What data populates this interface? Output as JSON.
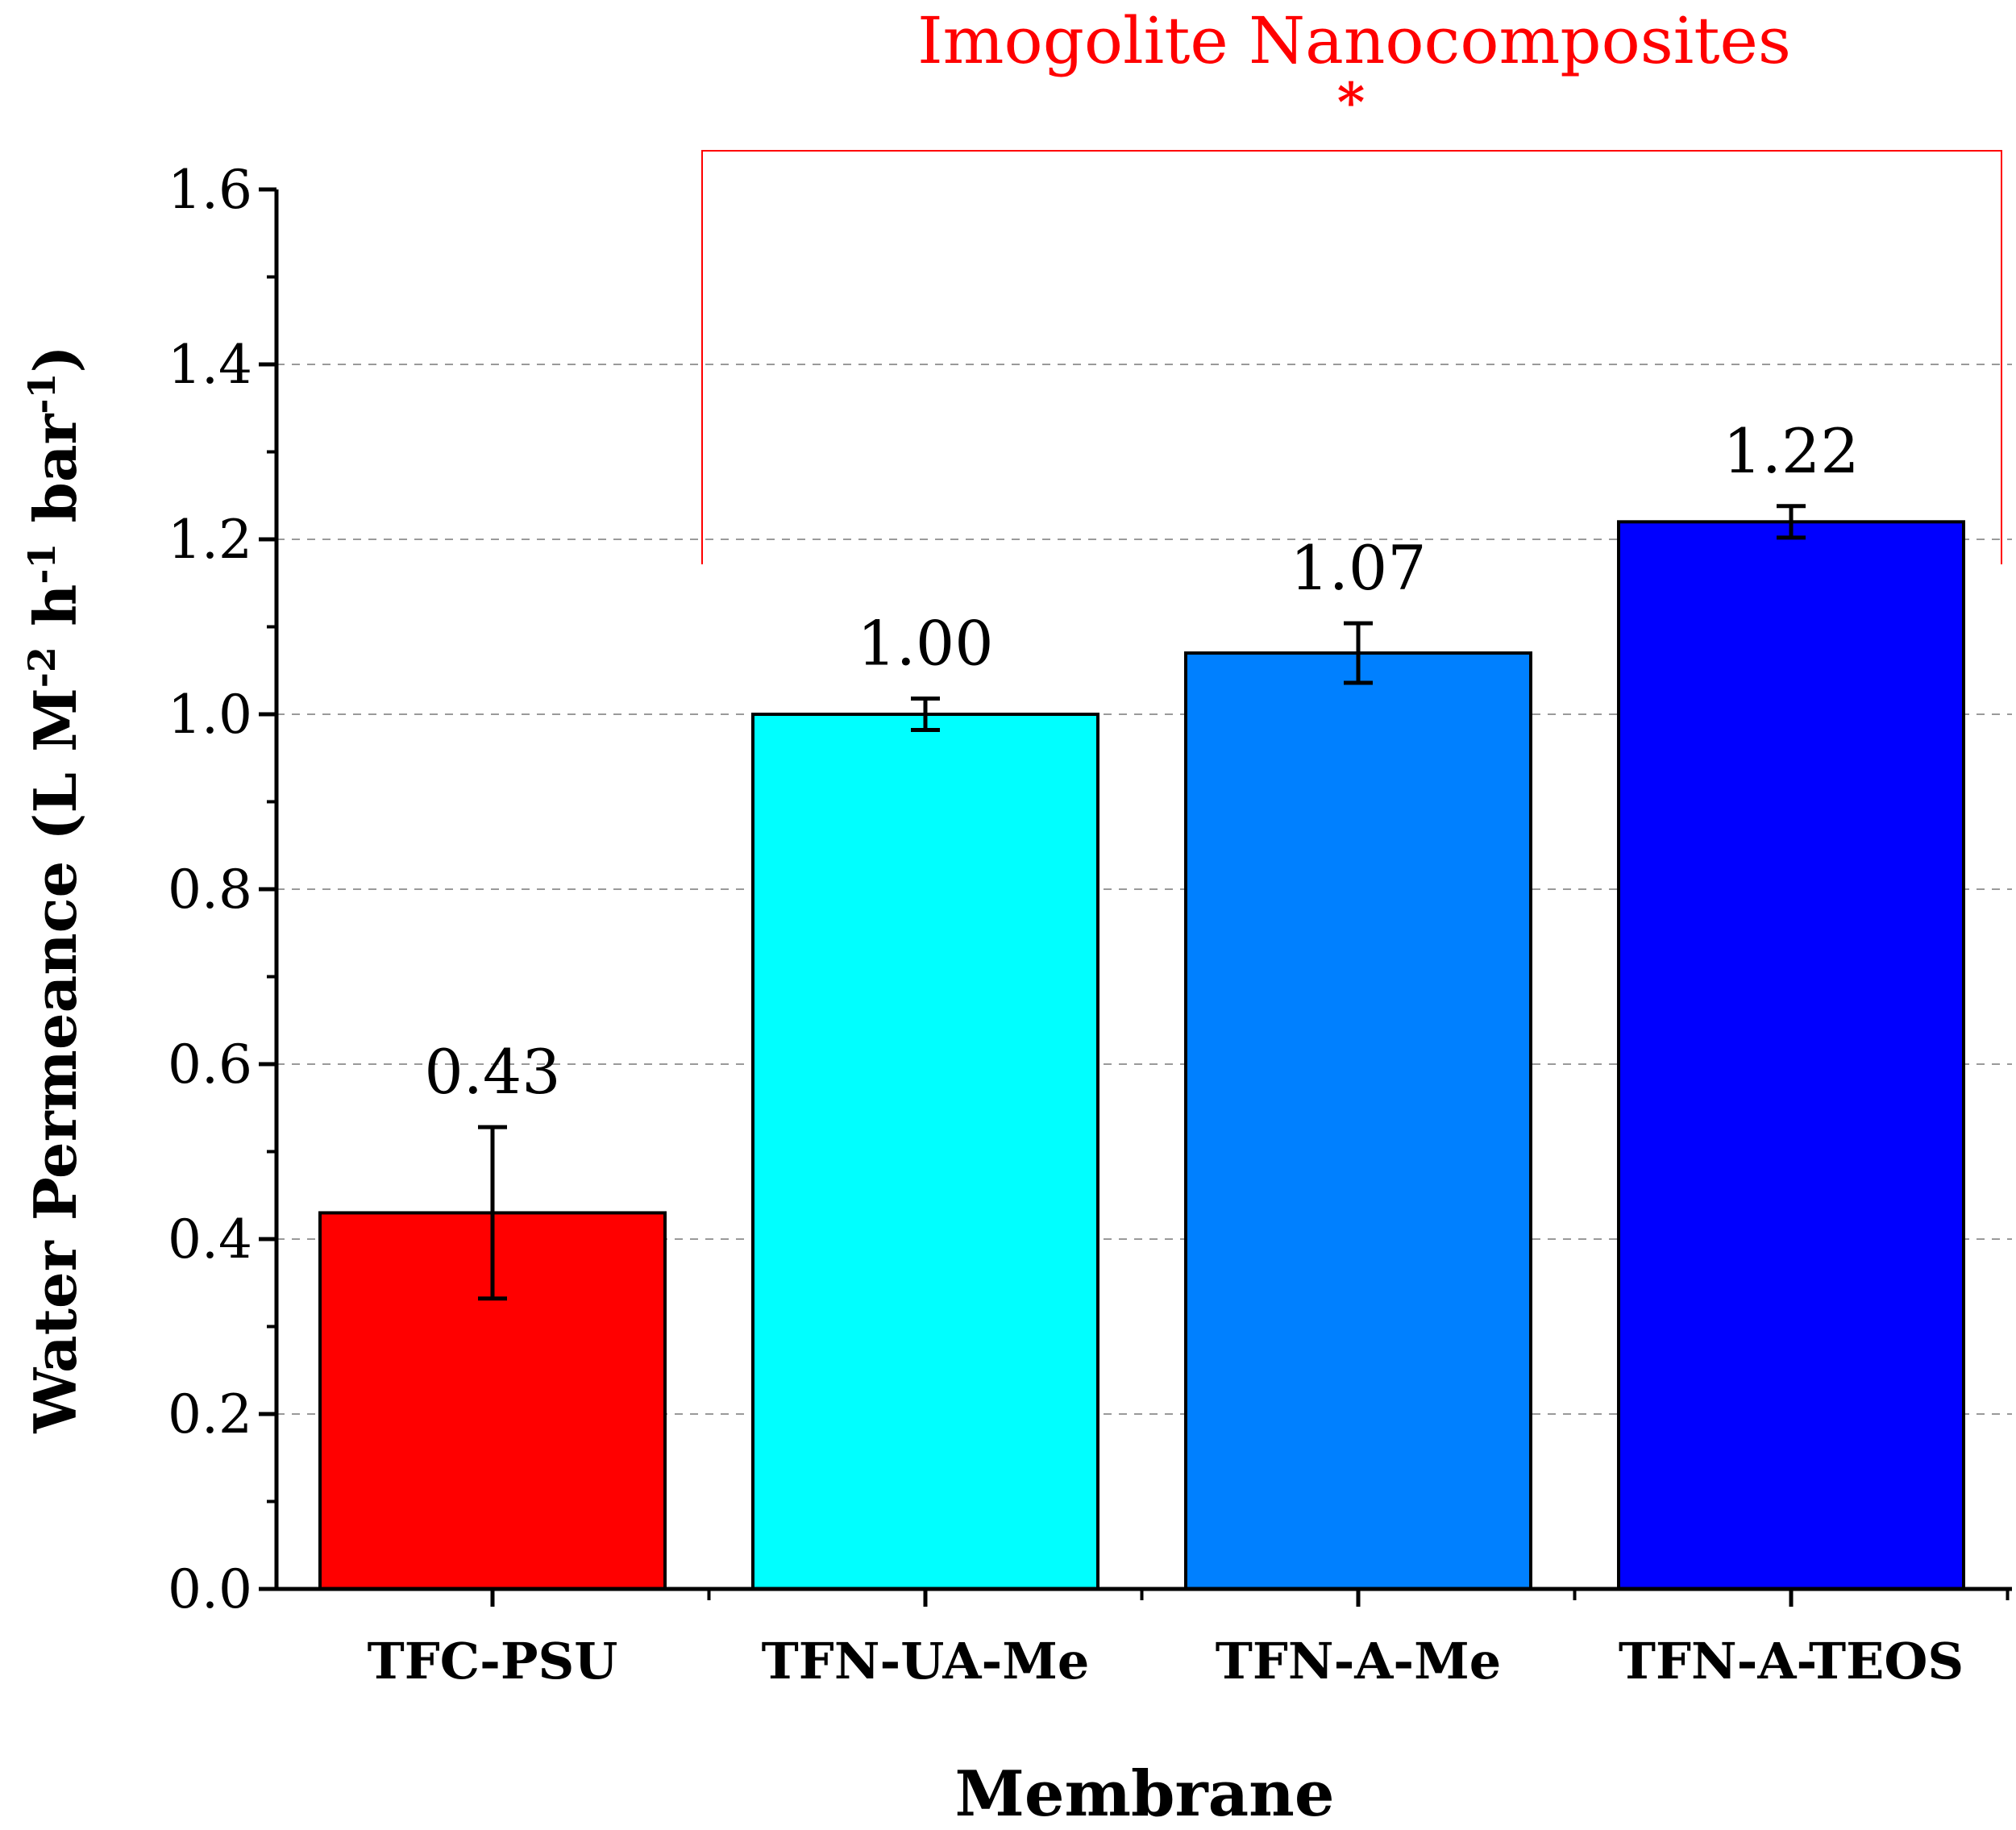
{
  "chart_data": {
    "type": "bar",
    "categories": [
      "TFC-PSU",
      "TFN-UA-Me",
      "TFN-A-Me",
      "TFN-A-TEOS"
    ],
    "values": [
      0.43,
      1.0,
      1.07,
      1.22
    ],
    "value_labels": [
      "0.43",
      "1.00",
      "1.07",
      "1.22"
    ],
    "errors": [
      0.098,
      0.018,
      0.034,
      0.018
    ],
    "bar_colors": [
      "#ff0000",
      "#00ffff",
      "#0080ff",
      "#0000ff"
    ],
    "title": "",
    "xlabel": "Membrane",
    "ylabel": {
      "main": "Water Permeance (L M",
      "exp1": "-2",
      "mid1": " h",
      "exp2": "-1",
      "mid2": " bar",
      "exp3": "-1",
      "end": ")"
    },
    "ylim": [
      0,
      1.6
    ],
    "yticks": [
      "0.0",
      "0.2",
      "0.4",
      "0.6",
      "0.8",
      "1.0",
      "1.2",
      "1.4",
      "1.6"
    ],
    "grid": true,
    "annotation": {
      "text": "Imogolite Nanocomposites",
      "marker": "*",
      "color": "#ff0000"
    }
  }
}
